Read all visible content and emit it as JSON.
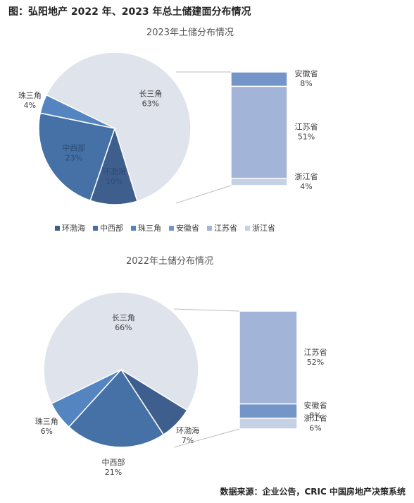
{
  "figure_title": "图：弘阳地产 2022 年、2023 年总土储建面分布情况",
  "source_note": "数据来源：企业公告，CRIC 中国房地产决策系统",
  "colors": {
    "环渤海": "#3e5f8d",
    "中西部": "#4571a6",
    "珠三角": "#5585c0",
    "长三角": "#dfe3ec",
    "安徽省": "#7395c8",
    "江苏省": "#a2b5d8",
    "浙江省": "#c6d1e6",
    "connector": "#b9bdc4"
  },
  "legend": [
    "环渤海",
    "中西部",
    "珠三角",
    "安徽省",
    "江苏省",
    "浙江省"
  ],
  "chart_data": [
    {
      "type": "pie",
      "title": "2023年土储分布情况",
      "slices": [
        {
          "name": "长三角",
          "value": 63,
          "label": "63%"
        },
        {
          "name": "环渤海",
          "value": 10,
          "label": "10%"
        },
        {
          "name": "中西部",
          "value": 23,
          "label": "23%"
        },
        {
          "name": "珠三角",
          "value": 4,
          "label": "4%"
        }
      ],
      "breakdown_of": "长三角",
      "breakdown": [
        {
          "name": "安徽省",
          "value": 8,
          "label": "8%"
        },
        {
          "name": "江苏省",
          "value": 51,
          "label": "51%"
        },
        {
          "name": "浙江省",
          "value": 4,
          "label": "4%"
        }
      ]
    },
    {
      "type": "pie",
      "title": "2022年土储分布情况",
      "slices": [
        {
          "name": "长三角",
          "value": 66,
          "label": "66%"
        },
        {
          "name": "环渤海",
          "value": 7,
          "label": "7%"
        },
        {
          "name": "中西部",
          "value": 21,
          "label": "21%"
        },
        {
          "name": "珠三角",
          "value": 6,
          "label": "6%"
        }
      ],
      "breakdown_of": "长三角",
      "breakdown": [
        {
          "name": "江苏省",
          "value": 52,
          "label": "52%"
        },
        {
          "name": "安徽省",
          "value": 8,
          "label": "8%"
        },
        {
          "name": "浙江省",
          "value": 6,
          "label": "6%"
        }
      ]
    }
  ]
}
